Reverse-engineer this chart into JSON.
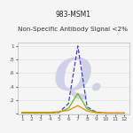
{
  "title1": "983-MSM1",
  "title2": "Non-Specific Antibody Signal <2%",
  "x": [
    1,
    2,
    3,
    4,
    5,
    6,
    7,
    8,
    9,
    10,
    11,
    12
  ],
  "blue_dashed": [
    0.01,
    0.01,
    0.01,
    0.01,
    0.02,
    0.15,
    1.0,
    0.1,
    0.02,
    0.01,
    0.01,
    0.01
  ],
  "green_solid": [
    0.01,
    0.01,
    0.01,
    0.01,
    0.02,
    0.08,
    0.3,
    0.07,
    0.02,
    0.01,
    0.01,
    0.01
  ],
  "orange_solid": [
    0.02,
    0.02,
    0.02,
    0.02,
    0.03,
    0.05,
    0.12,
    0.04,
    0.015,
    0.01,
    0.01,
    0.01
  ],
  "blue_color": "#4444bb",
  "green_color": "#66bb22",
  "orange_color": "#ee8800",
  "bg_color": "#f5f5f5",
  "watermark_color": "#d0d0e8",
  "xlim": [
    0.5,
    12.5
  ],
  "ylim": [
    -0.01,
    1.05
  ],
  "title1_fontsize": 5.5,
  "title2_fontsize": 5.2,
  "tick_fontsize": 4.2,
  "ytick_labels": [
    "",
    ".2",
    ".4",
    ".6",
    ".8",
    "1"
  ],
  "ytick_vals": [
    0,
    0.2,
    0.4,
    0.6,
    0.8,
    1.0
  ]
}
